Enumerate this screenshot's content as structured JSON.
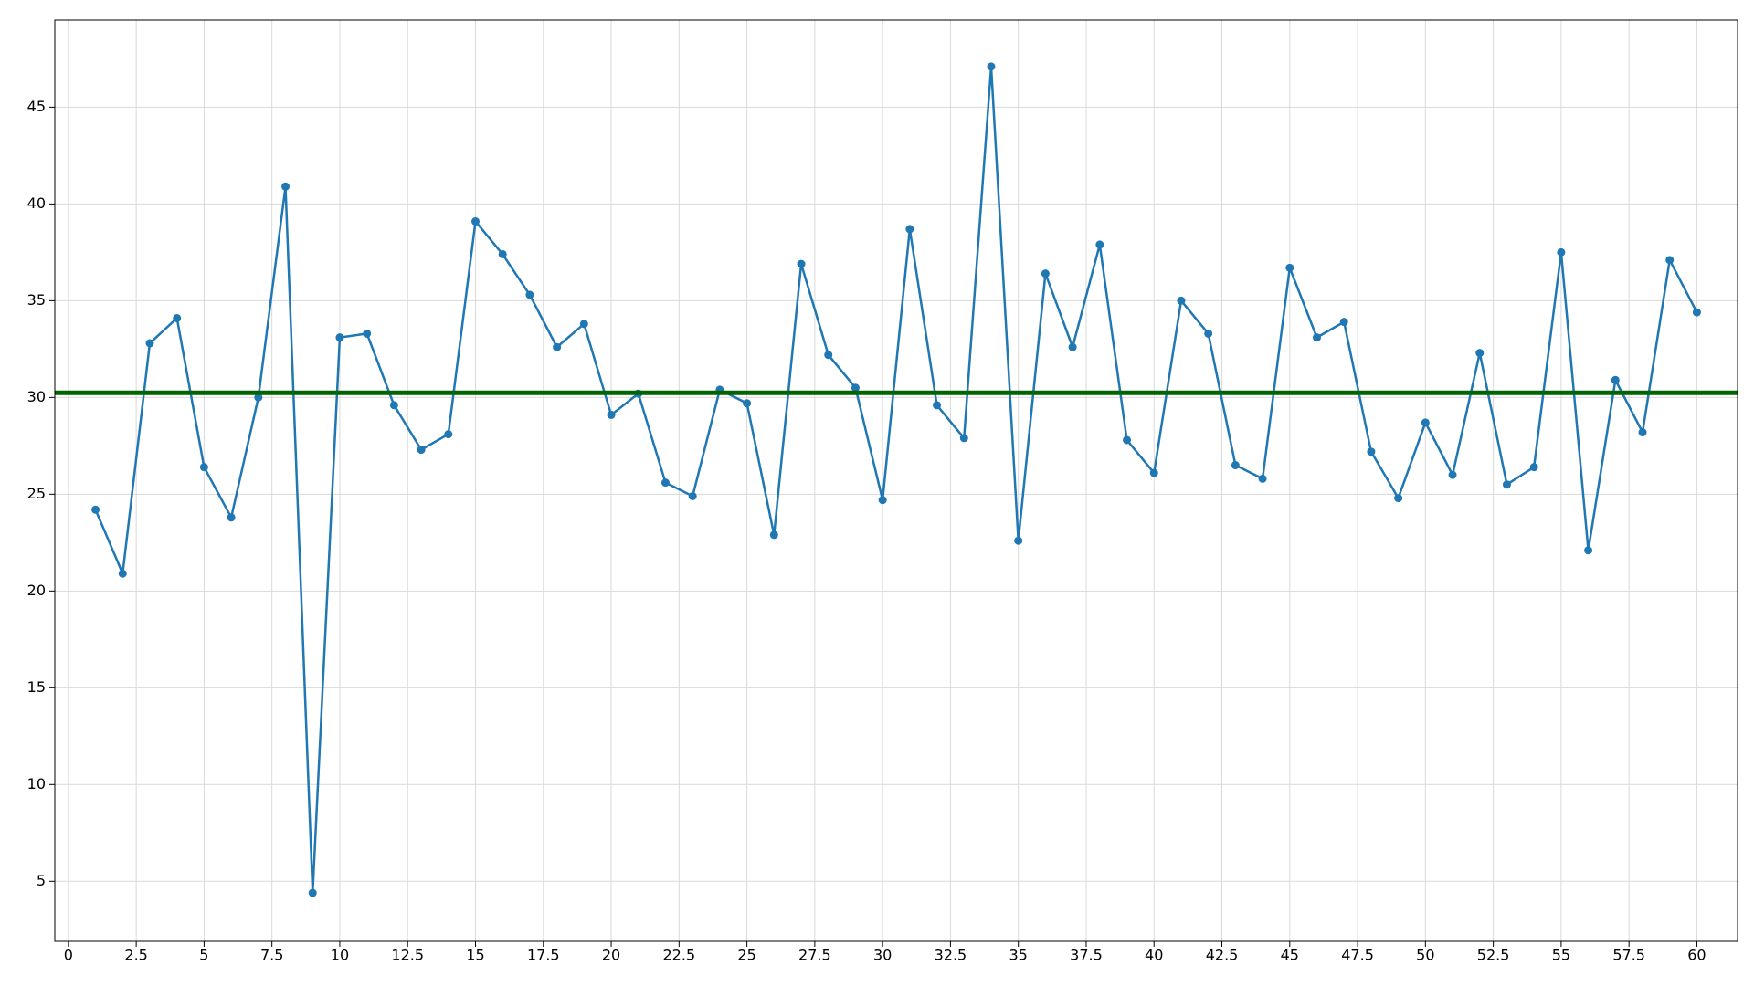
{
  "chart_data": {
    "type": "line",
    "x": [
      1,
      2,
      3,
      4,
      5,
      6,
      7,
      8,
      9,
      10,
      11,
      12,
      13,
      14,
      15,
      16,
      17,
      18,
      19,
      20,
      21,
      22,
      23,
      24,
      25,
      26,
      27,
      28,
      29,
      30,
      31,
      32,
      33,
      34,
      35,
      36,
      37,
      38,
      39,
      40,
      41,
      42,
      43,
      44,
      45,
      46,
      47,
      48,
      49,
      50,
      51,
      52,
      53,
      54,
      55,
      56,
      57,
      58,
      59,
      60
    ],
    "series": [
      {
        "color": "#1f77b4",
        "values": [
          24.2,
          20.9,
          32.8,
          34.1,
          26.4,
          23.8,
          30.0,
          40.9,
          4.4,
          33.1,
          33.3,
          29.6,
          27.3,
          28.1,
          39.1,
          37.4,
          35.3,
          32.6,
          33.8,
          29.1,
          30.2,
          25.6,
          24.9,
          30.4,
          29.7,
          22.9,
          36.9,
          32.2,
          30.5,
          24.7,
          38.7,
          29.6,
          27.9,
          47.1,
          22.6,
          36.4,
          32.6,
          37.9,
          27.8,
          26.1,
          35.0,
          33.3,
          26.5,
          25.8,
          36.7,
          33.1,
          33.9,
          27.2,
          24.8,
          28.7,
          26.0,
          32.3,
          25.5,
          26.4,
          37.5,
          22.1,
          30.9,
          28.2,
          37.1,
          34.4
        ]
      }
    ],
    "hline": {
      "value": 30.24,
      "color": "#006400"
    },
    "xlim": [
      -0.5,
      61.5
    ],
    "xticks": [
      0,
      2.5,
      5,
      7.5,
      10,
      12.5,
      15,
      17.5,
      20,
      22.5,
      25,
      27.5,
      30,
      32.5,
      35,
      37.5,
      40,
      42.5,
      45,
      47.5,
      50,
      52.5,
      55,
      57.5,
      60
    ],
    "ylim": [
      1.9,
      49.5
    ],
    "yticks": [
      5,
      10,
      15,
      20,
      25,
      30,
      35,
      40,
      45
    ],
    "grid": true
  }
}
